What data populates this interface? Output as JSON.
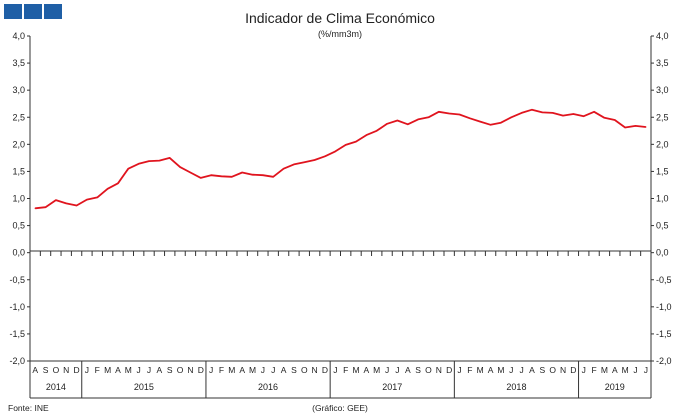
{
  "chart_data": {
    "type": "line",
    "title": "Indicador de Clima Económico",
    "subtitle": "(%/mm3m)",
    "ylim": [
      -2.0,
      4.0
    ],
    "yticks": [
      "4,0",
      "3,5",
      "3,0",
      "2,5",
      "2,0",
      "1,5",
      "1,0",
      "0,5",
      "0,0",
      "-0,5",
      "-1,0",
      "-1,5",
      "-2,0"
    ],
    "grid": false,
    "legend": "none",
    "line_color": "#e0141e",
    "logo_color": "#1f5fa6",
    "months": [
      "A",
      "S",
      "O",
      "N",
      "D",
      "J",
      "F",
      "M",
      "A",
      "M",
      "J",
      "J",
      "A",
      "S",
      "O",
      "N",
      "D",
      "J",
      "F",
      "M",
      "A",
      "M",
      "J",
      "J",
      "A",
      "S",
      "O",
      "N",
      "D",
      "J",
      "F",
      "M",
      "A",
      "M",
      "J",
      "J",
      "A",
      "S",
      "O",
      "N",
      "D",
      "J",
      "F",
      "M",
      "A",
      "M",
      "J",
      "J",
      "A",
      "S",
      "O",
      "N",
      "D",
      "J",
      "F",
      "M",
      "A",
      "M",
      "J",
      "J"
    ],
    "years": [
      {
        "label": "2014",
        "start": 0,
        "end": 4
      },
      {
        "label": "2015",
        "start": 5,
        "end": 16
      },
      {
        "label": "2016",
        "start": 17,
        "end": 28
      },
      {
        "label": "2017",
        "start": 29,
        "end": 40
      },
      {
        "label": "2018",
        "start": 41,
        "end": 52
      },
      {
        "label": "2019",
        "start": 53,
        "end": 59
      }
    ],
    "series": [
      {
        "values": [
          0.82,
          0.84,
          0.97,
          0.91,
          0.87,
          0.98,
          1.02,
          1.18,
          1.28,
          1.55,
          1.64,
          1.69,
          1.7,
          1.75,
          1.58,
          1.48,
          1.38,
          1.43,
          1.41,
          1.4,
          1.48,
          1.44,
          1.43,
          1.4,
          1.55,
          1.63,
          1.67,
          1.71,
          1.78,
          1.87,
          1.99,
          2.05,
          2.17,
          2.25,
          2.38,
          2.44,
          2.37,
          2.46,
          2.5,
          2.6,
          2.57,
          2.55,
          2.48,
          2.42,
          2.36,
          2.4,
          2.5,
          2.58,
          2.64,
          2.59,
          2.58,
          2.53,
          2.56,
          2.52,
          2.6,
          2.49,
          2.45,
          2.31,
          2.34,
          2.32
        ]
      }
    ]
  },
  "footer": {
    "source": "Fonte: INE",
    "credit": "(Gráfico: GEE)"
  }
}
